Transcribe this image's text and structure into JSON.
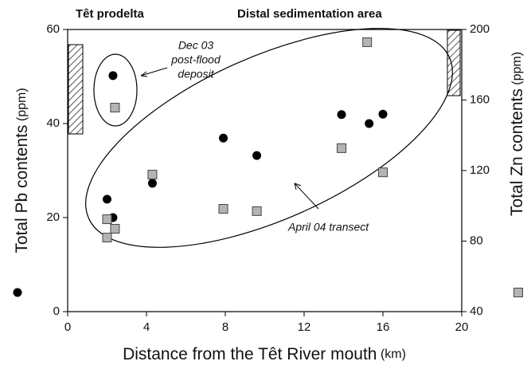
{
  "chart_data": {
    "type": "scatter",
    "headers": [
      "Têt prodelta",
      "Distal sedimentation area"
    ],
    "x_label": "Distance from the Têt River mouth",
    "x_label_unit": "(km)",
    "y_label": "Total Pb contents",
    "y_label_unit": "(ppm)",
    "y2_label": "Total Zn contents",
    "y2_label_unit": "(ppm)",
    "annotations": {
      "dec03": [
        "Dec 03",
        "post-flood",
        "deposit"
      ],
      "april04": "April 04 transect"
    },
    "xlim": [
      0,
      20
    ],
    "xticks": [
      0,
      4,
      8,
      12,
      16,
      20
    ],
    "ylim": [
      0,
      60
    ],
    "yticks": [
      0,
      20,
      40,
      60
    ],
    "y2lim": [
      40,
      200
    ],
    "y2ticks": [
      40,
      80,
      120,
      160,
      200
    ],
    "series": [
      {
        "color": "#000000",
        "marker": "circle",
        "x": [
          2.0,
          2.3,
          2.3,
          4.3,
          7.9,
          9.6,
          13.9,
          15.3,
          16.0
        ],
        "values": [
          23.9,
          20.0,
          50.2,
          27.3,
          36.9,
          33.2,
          41.9,
          40.0,
          42.0
        ]
      },
      {
        "color": "#b4b4b4",
        "marker": "square",
        "axis": "y2",
        "x": [
          2.0,
          2.4,
          2.0,
          2.4,
          4.3,
          7.9,
          9.6,
          13.9,
          15.2,
          16.0
        ],
        "values": [
          92.4,
          87.0,
          82.0,
          155.7,
          117.7,
          98.3,
          97.0,
          132.7,
          192.8,
          119.0
        ]
      }
    ]
  }
}
